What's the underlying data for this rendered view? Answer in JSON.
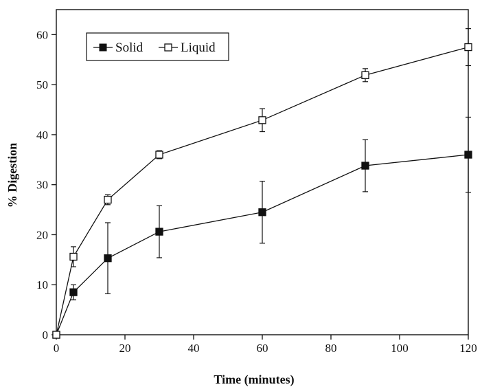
{
  "chart_data": {
    "type": "line",
    "xlabel": "Time (minutes)",
    "ylabel": "% Digestion",
    "xlim": [
      0,
      120
    ],
    "ylim": [
      0,
      65
    ],
    "xticks": [
      0,
      20,
      40,
      60,
      80,
      100,
      120
    ],
    "yticks": [
      0,
      10,
      20,
      30,
      40,
      50,
      60
    ],
    "grid": false,
    "legend_position": "top-left",
    "x": [
      0,
      5,
      15,
      30,
      60,
      90,
      120
    ],
    "series": [
      {
        "name": "Solid",
        "marker": "filled-square",
        "color": "#111111",
        "values": [
          0,
          8.5,
          15.3,
          20.6,
          24.5,
          33.8,
          36.0
        ],
        "error": [
          0,
          1.5,
          7.1,
          5.2,
          6.2,
          5.2,
          7.5
        ]
      },
      {
        "name": "Liquid",
        "marker": "open-square",
        "color": "#111111",
        "values": [
          0,
          15.6,
          27.0,
          36.0,
          42.9,
          51.9,
          57.5
        ],
        "error": [
          0,
          2.0,
          1.0,
          0.8,
          2.3,
          1.3,
          3.7
        ]
      }
    ]
  }
}
